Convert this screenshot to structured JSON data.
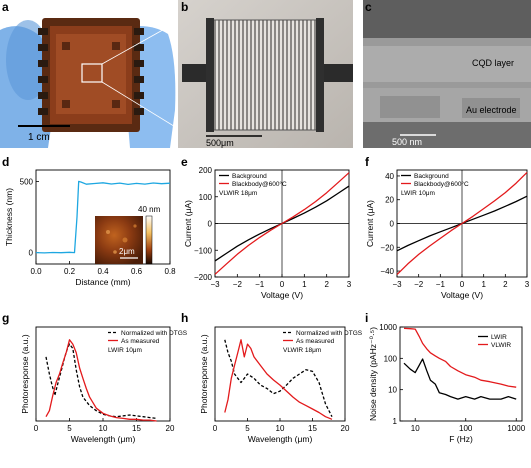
{
  "panels": {
    "a": {
      "letter": "a",
      "scale_bar": "1 cm"
    },
    "b": {
      "letter": "b",
      "scale_bar": "500μm"
    },
    "c": {
      "letter": "c",
      "scale_bar": "500 nm",
      "label_cqd": "CQD layer",
      "label_au": "Au electrode"
    },
    "d": {
      "letter": "d",
      "inset_scale_bar": "2μm",
      "inset_colorbar_max": "40 nm"
    },
    "e": {
      "letter": "e"
    },
    "f": {
      "letter": "f"
    },
    "g": {
      "letter": "g"
    },
    "h": {
      "letter": "h"
    },
    "i": {
      "letter": "i"
    }
  },
  "colors": {
    "black": "#000000",
    "red": "#e31a1c",
    "cyan": "#1ea7e1"
  },
  "chart_data": [
    {
      "panel": "d",
      "type": "line",
      "xlabel": "Distance (mm)",
      "ylabel": "Thickness (nm)",
      "xlim": [
        0,
        0.8
      ],
      "ylim": [
        -80,
        580
      ],
      "xticks": [
        0.0,
        0.2,
        0.4,
        0.6,
        0.8
      ],
      "xticklabels": [
        "0.0",
        "0.2",
        "0.4",
        "0.6",
        "0.8"
      ],
      "yticks": [
        0,
        500
      ],
      "yticklabels": [
        "0",
        "500"
      ],
      "series": [
        {
          "color": "#1ea7e1",
          "x": [
            0.0,
            0.05,
            0.1,
            0.15,
            0.2,
            0.23,
            0.245,
            0.255,
            0.27,
            0.3,
            0.35,
            0.4,
            0.45,
            0.5,
            0.55,
            0.6,
            0.65,
            0.7,
            0.75,
            0.8
          ],
          "y": [
            0,
            -2,
            1,
            -1,
            2,
            0,
            250,
            500,
            495,
            480,
            485,
            490,
            482,
            488,
            479,
            486,
            481,
            489,
            484,
            487
          ]
        }
      ]
    },
    {
      "panel": "e",
      "type": "line",
      "xlabel": "Voltage (V)",
      "ylabel": "Current (μA)",
      "xlim": [
        -3,
        3
      ],
      "ylim": [
        -200,
        200
      ],
      "xticks": [
        -3,
        -2,
        -1,
        0,
        1,
        2,
        3
      ],
      "xticklabels": [
        "−3",
        "−2",
        "−1",
        "0",
        "1",
        "2",
        "3"
      ],
      "yticks": [
        -200,
        -100,
        0,
        100,
        200
      ],
      "yticklabels": [
        "−200",
        "−100",
        "0",
        "100",
        "200"
      ],
      "legend_position": "top-left",
      "legend_note": "VLWIR 18μm",
      "series": [
        {
          "name": "Background",
          "color": "#000000",
          "x": [
            -3,
            -2.5,
            -2,
            -1.5,
            -1,
            -0.5,
            0,
            0.5,
            1,
            1.5,
            2,
            2.5,
            3
          ],
          "y": [
            -140,
            -112,
            -85,
            -61,
            -39,
            -19,
            0,
            19,
            39,
            61,
            85,
            112,
            140
          ]
        },
        {
          "name": "Blackbody@600°C",
          "color": "#e31a1c",
          "x": [
            -3,
            -2.5,
            -2,
            -1.5,
            -1,
            -0.5,
            0,
            0.5,
            1,
            1.5,
            2,
            2.5,
            3
          ],
          "y": [
            -190,
            -152,
            -115,
            -82,
            -52,
            -25,
            0,
            25,
            52,
            82,
            115,
            152,
            190
          ]
        }
      ]
    },
    {
      "panel": "f",
      "type": "line",
      "xlabel": "Voltage (V)",
      "ylabel": "Current (μA)",
      "xlim": [
        -3,
        3
      ],
      "ylim": [
        -45,
        45
      ],
      "xticks": [
        -3,
        -2,
        -1,
        0,
        1,
        2,
        3
      ],
      "xticklabels": [
        "−3",
        "−2",
        "−1",
        "0",
        "1",
        "2",
        "3"
      ],
      "yticks": [
        -40,
        -20,
        0,
        20,
        40
      ],
      "yticklabels": [
        "−40",
        "−20",
        "0",
        "20",
        "40"
      ],
      "legend_position": "top-left",
      "legend_note": "LWIR 10μm",
      "series": [
        {
          "name": "Background",
          "color": "#000000",
          "x": [
            -3,
            -2.5,
            -2,
            -1.5,
            -1,
            -0.5,
            0,
            0.5,
            1,
            1.5,
            2,
            2.5,
            3
          ],
          "y": [
            -23,
            -18.5,
            -14.5,
            -10.5,
            -7,
            -3.5,
            0,
            3.5,
            7,
            10.5,
            14.5,
            18.5,
            23
          ]
        },
        {
          "name": "Blackbody@600°C",
          "color": "#e31a1c",
          "x": [
            -3,
            -2.5,
            -2,
            -1.5,
            -1,
            -0.5,
            0,
            0.5,
            1,
            1.5,
            2,
            2.5,
            3
          ],
          "y": [
            -43,
            -34,
            -26,
            -19,
            -12.5,
            -6,
            0,
            6,
            12.5,
            19,
            26,
            34,
            43
          ]
        }
      ]
    },
    {
      "panel": "g",
      "type": "line",
      "xlabel": "Wavelength (μm)",
      "ylabel": "Photoresponse (a.u.)",
      "xlim": [
        0,
        20
      ],
      "ylim": [
        0,
        1.1
      ],
      "xticks": [
        0,
        5,
        10,
        15,
        20
      ],
      "xticklabels": [
        "0",
        "5",
        "10",
        "15",
        "20"
      ],
      "legend_position": "top-right",
      "legend_note": "LWIR 10μm",
      "series": [
        {
          "name": "Normalized with DTGS",
          "color": "#000000",
          "dashed": true,
          "x": [
            1.5,
            2.0,
            2.3,
            2.8,
            3.3,
            3.8,
            4.3,
            4.7,
            5.0,
            5.5,
            6.0,
            6.5,
            7.0,
            8.0,
            9.0,
            10,
            11,
            12,
            13,
            14,
            15,
            16,
            17,
            18
          ],
          "y": [
            0.75,
            0.55,
            0.45,
            0.3,
            0.45,
            0.6,
            0.75,
            0.85,
            0.9,
            0.85,
            0.6,
            0.4,
            0.28,
            0.18,
            0.12,
            0.08,
            0.06,
            0.05,
            0.06,
            0.07,
            0.06,
            0.05,
            0.04,
            0.03
          ]
        },
        {
          "name": "As measured",
          "color": "#e31a1c",
          "x": [
            1.5,
            2.0,
            2.5,
            3.0,
            3.5,
            4.0,
            4.5,
            5.0,
            5.5,
            6.0,
            6.5,
            7.0,
            7.5,
            8.0,
            9.0,
            10,
            11,
            12,
            13,
            14,
            15,
            16,
            17,
            18
          ],
          "y": [
            0.05,
            0.12,
            0.3,
            0.45,
            0.55,
            0.68,
            0.8,
            0.95,
            0.9,
            0.8,
            0.62,
            0.5,
            0.38,
            0.28,
            0.15,
            0.09,
            0.06,
            0.04,
            0.03,
            0.02,
            0.02,
            0.01,
            0.01,
            0.0
          ]
        }
      ]
    },
    {
      "panel": "h",
      "type": "line",
      "xlabel": "Wavelength (μm)",
      "ylabel": "Photoresponse (a.u.)",
      "xlim": [
        0,
        20
      ],
      "ylim": [
        0,
        1.1
      ],
      "xticks": [
        0,
        5,
        10,
        15,
        20
      ],
      "xticklabels": [
        "0",
        "5",
        "10",
        "15",
        "20"
      ],
      "legend_position": "top-right",
      "legend_note": "VLWIR 18μm",
      "series": [
        {
          "name": "Normalized with DTGS",
          "color": "#000000",
          "dashed": true,
          "x": [
            1.5,
            2.0,
            2.5,
            3.0,
            3.5,
            4.0,
            4.5,
            5.0,
            6.0,
            7.0,
            8.0,
            9.0,
            10,
            11,
            12,
            13,
            14,
            15,
            16,
            17,
            18
          ],
          "y": [
            0.95,
            0.8,
            0.7,
            0.55,
            0.5,
            0.45,
            0.5,
            0.55,
            0.5,
            0.42,
            0.38,
            0.32,
            0.35,
            0.42,
            0.5,
            0.55,
            0.6,
            0.58,
            0.45,
            0.2,
            0.05
          ]
        },
        {
          "name": "As measured",
          "color": "#e31a1c",
          "x": [
            1.5,
            2.0,
            2.5,
            3.0,
            3.5,
            4.0,
            4.5,
            5.0,
            5.5,
            6.0,
            7.0,
            8.0,
            9.0,
            10,
            11,
            12,
            13,
            14,
            15,
            16,
            17,
            18
          ],
          "y": [
            0.1,
            0.25,
            0.5,
            0.65,
            0.8,
            0.95,
            0.75,
            0.9,
            0.85,
            0.75,
            0.65,
            0.55,
            0.48,
            0.42,
            0.35,
            0.28,
            0.22,
            0.18,
            0.14,
            0.1,
            0.05,
            0.02
          ]
        }
      ]
    },
    {
      "panel": "i",
      "type": "line",
      "xlabel": "F (Hz)",
      "ylabel": "Noise density (pAHz⁻⁰·⁵)",
      "xscale": "log",
      "yscale": "log",
      "xlim": [
        5,
        1300
      ],
      "ylim": [
        1,
        1000
      ],
      "xticks": [
        10,
        100,
        1000
      ],
      "xticklabels": [
        "10",
        "100",
        "1000"
      ],
      "yticks": [
        1,
        10,
        100,
        1000
      ],
      "yticklabels": [
        "1",
        "10",
        "100",
        "1000"
      ],
      "legend_position": "top-right",
      "series": [
        {
          "name": "LWIR",
          "color": "#000000",
          "x": [
            6,
            8,
            10,
            12,
            14,
            17,
            20,
            25,
            30,
            40,
            50,
            70,
            100,
            150,
            200,
            300,
            500,
            700,
            1000
          ],
          "y": [
            70,
            45,
            35,
            60,
            95,
            40,
            20,
            15,
            8,
            7,
            6,
            5,
            6,
            5,
            6,
            5,
            5,
            6,
            5
          ]
        },
        {
          "name": "VLWIR",
          "color": "#e31a1c",
          "x": [
            6,
            8,
            10,
            12,
            14,
            17,
            20,
            25,
            30,
            40,
            50,
            70,
            100,
            150,
            200,
            300,
            500,
            700,
            1000
          ],
          "y": [
            900,
            880,
            860,
            500,
            300,
            200,
            150,
            120,
            100,
            80,
            55,
            40,
            30,
            25,
            20,
            18,
            15,
            13,
            12
          ]
        }
      ]
    }
  ]
}
